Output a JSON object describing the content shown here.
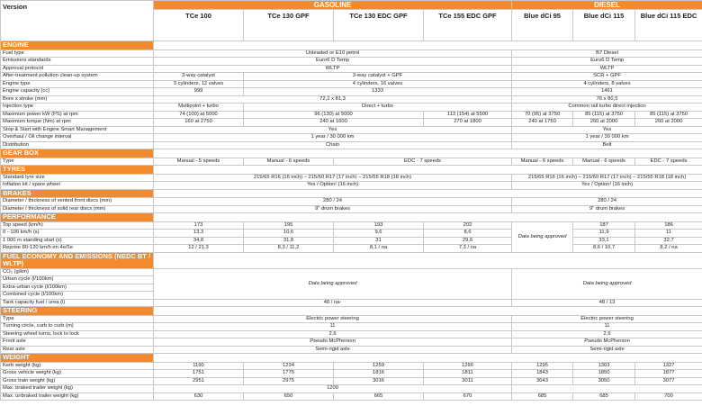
{
  "header": {
    "version": "Version",
    "groups": [
      {
        "name": "GASOLINE",
        "models": [
          "TCe 100",
          "TCe 130 GPF",
          "TCe 130 EDC GPF",
          "TCe 155 EDC GPF"
        ]
      },
      {
        "name": "DIESEL",
        "models": [
          "Blue dCi 95",
          "Blue dCi 115",
          "Blue dCi 115 EDC"
        ]
      }
    ]
  },
  "sections": [
    {
      "title": "ENGINE",
      "rows": [
        {
          "label": "Fuel type",
          "cells": [
            {
              "text": "Unleaded or E10 petrol",
              "span": 4
            },
            {
              "text": "B7 Diesel",
              "span": 3
            }
          ]
        },
        {
          "label": "Emissions standards",
          "cells": [
            {
              "text": "Euro6 D Temp",
              "span": 4
            },
            {
              "text": "Euro6 D Temp",
              "span": 3
            }
          ]
        },
        {
          "label": "Approval protocol",
          "cells": [
            {
              "text": "WLTP",
              "span": 4
            },
            {
              "text": "WLTP",
              "span": 3
            }
          ]
        },
        {
          "label": "After-treatment pollution clean-up system",
          "cells": [
            "3-way catalyst",
            {
              "text": "3-way catalyst + GPF",
              "span": 3
            },
            {
              "text": "SCR + GPF",
              "span": 3
            }
          ]
        },
        {
          "label": "Engine type",
          "cells": [
            "3 cylinders, 12 valves",
            {
              "text": "4 cylinders, 16 valves",
              "span": 3
            },
            {
              "text": "4 cylinders, 8 valves",
              "span": 3
            }
          ]
        },
        {
          "label": "Engine capacity (cc)",
          "cells": [
            "999",
            {
              "text": "1333",
              "span": 3
            },
            {
              "text": "1461",
              "span": 3
            }
          ]
        },
        {
          "label": "Bore x stroke (mm)",
          "cells": [
            {
              "text": "72,2 x 81,3",
              "span": 4
            },
            {
              "text": "76 x 80,5",
              "span": 3
            }
          ]
        },
        {
          "label": "Injection type",
          "cells": [
            "Multipoint + turbo",
            {
              "text": "Direct + turbo",
              "span": 3
            },
            {
              "text": "Common rail turbo direct injection",
              "span": 3
            }
          ]
        },
        {
          "label": "Maximum power kW (PS) at rpm",
          "cells": [
            "74 (100) at 5000",
            {
              "text": "96 (130) at 5000",
              "span": 2
            },
            "113 (154) at 5500",
            "70 (95) at 3750",
            "85 (115) at 3750",
            "85 (115) at 3750"
          ]
        },
        {
          "label": "Maximum torque (Nm) at rpm",
          "cells": [
            "160 at 2750",
            {
              "text": "240 at 1600",
              "span": 2
            },
            "270 at 1800",
            "240 at 1750",
            "260 at 2000",
            "260 at 2000"
          ]
        },
        {
          "label": "Stop & Start with Engine Smart Management",
          "cells": [
            {
              "text": "Yes",
              "span": 4
            },
            {
              "text": "Yes",
              "span": 3
            }
          ]
        },
        {
          "label": "Overhaul / Oil change interval",
          "cells": [
            {
              "text": "1 year / 30 000 km",
              "span": 4
            },
            {
              "text": "1 year / 30 000 km",
              "span": 3
            }
          ]
        },
        {
          "label": "Distribution",
          "cells": [
            {
              "text": "Chain",
              "span": 4
            },
            {
              "text": "Belt",
              "span": 3
            }
          ]
        }
      ]
    },
    {
      "title": "GEAR BOX",
      "rows": [
        {
          "label": "Type",
          "cells": [
            "Manual - 5 speeds",
            "Manual - 6 speeds",
            {
              "text": "EDC - 7 speeds",
              "span": 2
            },
            "Manual - 6 speeds",
            "Manual - 6 speeds",
            "EDC - 7 speeds"
          ]
        }
      ]
    },
    {
      "title": "TYRES",
      "rows": [
        {
          "label": "Standard tyre size",
          "cells": [
            {
              "text": "215/65 R16 (16 inch) – 215/60 R17 (17 inch) – 215/55 R18 (18 inch)",
              "span": 4
            },
            {
              "text": "215/65 R16 (16 inch) – 215/60 R17 (17 inch) – 215/55 R18 (18 inch)",
              "span": 3
            }
          ]
        },
        {
          "label": "Inflation kit / spare wheel",
          "cells": [
            {
              "text": "Yes / Option! (16 inch)",
              "span": 4
            },
            {
              "text": "Yes / Option! (16 inch)",
              "span": 3
            }
          ]
        }
      ]
    },
    {
      "title": "BRAKES",
      "rows": [
        {
          "label": "Diameter / thickness of vented front discs (mm)",
          "cells": [
            {
              "text": "280 / 24",
              "span": 4
            },
            {
              "text": "280 / 24",
              "span": 3
            }
          ]
        },
        {
          "label": "Diameter / thickness of solid rear discs (mm)",
          "cells": [
            {
              "text": "9\" drum brakes",
              "span": 4
            },
            {
              "text": "9\" drum brakes",
              "span": 3
            }
          ]
        }
      ]
    },
    {
      "title": "PERFORMANCE",
      "rows": [
        {
          "label": "Top speed (km/h)",
          "cells": [
            "173",
            "195",
            "193",
            "202",
            {
              "text": "Data being approved",
              "rowspan": 4
            },
            "187",
            "186"
          ]
        },
        {
          "label": "0 - 100 km/h (s)",
          "cells": [
            "13,3",
            "10,6",
            "9,6",
            "8,6",
            "11,9",
            "11"
          ]
        },
        {
          "label": "1 000 m standing start (s)",
          "cells": [
            "34,8",
            "31,8",
            "31",
            "29,6",
            "33,1",
            "32,7"
          ]
        },
        {
          "label": "Reprise 80-120 km/h en 4e/5e",
          "cells": [
            "12 / 21,3",
            "8,3 / 11,2",
            "8,1 / na",
            "7,3 / na",
            "8,6 / 10,7",
            "8,2 / na"
          ]
        }
      ]
    },
    {
      "title": "FUEL ECONOMY AND EMISSIONS (NEDC BT / WLTP)",
      "rows": [
        {
          "label": "CO₂ (g/km)",
          "cells": [
            {
              "text": "Data being approved",
              "span": 4,
              "rowspan": 4
            },
            {
              "text": "Data being approved",
              "span": 3,
              "rowspan": 4
            }
          ]
        },
        {
          "label": "Urban cycle (l/100km)",
          "cells": []
        },
        {
          "label": "Extra-urban cycle (l/100km)",
          "cells": []
        },
        {
          "label": "Combined cycle (l/100km)",
          "cells": []
        },
        {
          "label": "Tank capacity fuel / urea (l)",
          "cells": [
            {
              "text": "48 / na-",
              "span": 4
            },
            {
              "text": "48 / 13",
              "span": 3
            }
          ]
        }
      ]
    },
    {
      "title": "STEERING",
      "rows": [
        {
          "label": "Type",
          "cells": [
            {
              "text": "Electric power steering",
              "span": 4
            },
            {
              "text": "Electric power steering",
              "span": 3
            }
          ]
        },
        {
          "label": "Turning circle, curb to curb (m)",
          "cells": [
            {
              "text": "11",
              "span": 4
            },
            {
              "text": "11",
              "span": 3
            }
          ]
        },
        {
          "label": "Steering wheel turns, lock to lock",
          "cells": [
            {
              "text": "2,6",
              "span": 4
            },
            {
              "text": "2,6",
              "span": 3
            }
          ]
        },
        {
          "label": "Front axle",
          "cells": [
            {
              "text": "Pseudo McPherson",
              "span": 4
            },
            {
              "text": "Pseudo McPherson",
              "span": 3
            }
          ]
        },
        {
          "label": "Rear axle",
          "cells": [
            {
              "text": "Semi-rigid axle",
              "span": 4
            },
            {
              "text": "Semi-rigid axle",
              "span": 3
            }
          ]
        }
      ]
    },
    {
      "title": "WEIGHT",
      "rows": [
        {
          "label": "Kerb weight (kg)",
          "cells": [
            "1190",
            "1234",
            "1259",
            "1266",
            "1295",
            "1303",
            "1327"
          ]
        },
        {
          "label": "Gross vehicle weight (kg)",
          "cells": [
            "1751",
            "1775",
            "1816",
            "1811",
            "1843",
            "1850",
            "1877"
          ]
        },
        {
          "label": "Gross train weight (kg)",
          "cells": [
            "2951",
            "2975",
            "3016",
            "3011",
            "3043",
            "3050",
            "3077"
          ]
        },
        {
          "label": "Max. braked trailer weight (kg)",
          "cells": [
            {
              "text": "1200",
              "span": 4
            },
            {
              "span": 3
            }
          ]
        },
        {
          "label": "Max. unbraked trailer weight (kg)",
          "cells": [
            "630",
            "650",
            "665",
            "670",
            "685",
            "685",
            "700"
          ]
        }
      ]
    }
  ]
}
